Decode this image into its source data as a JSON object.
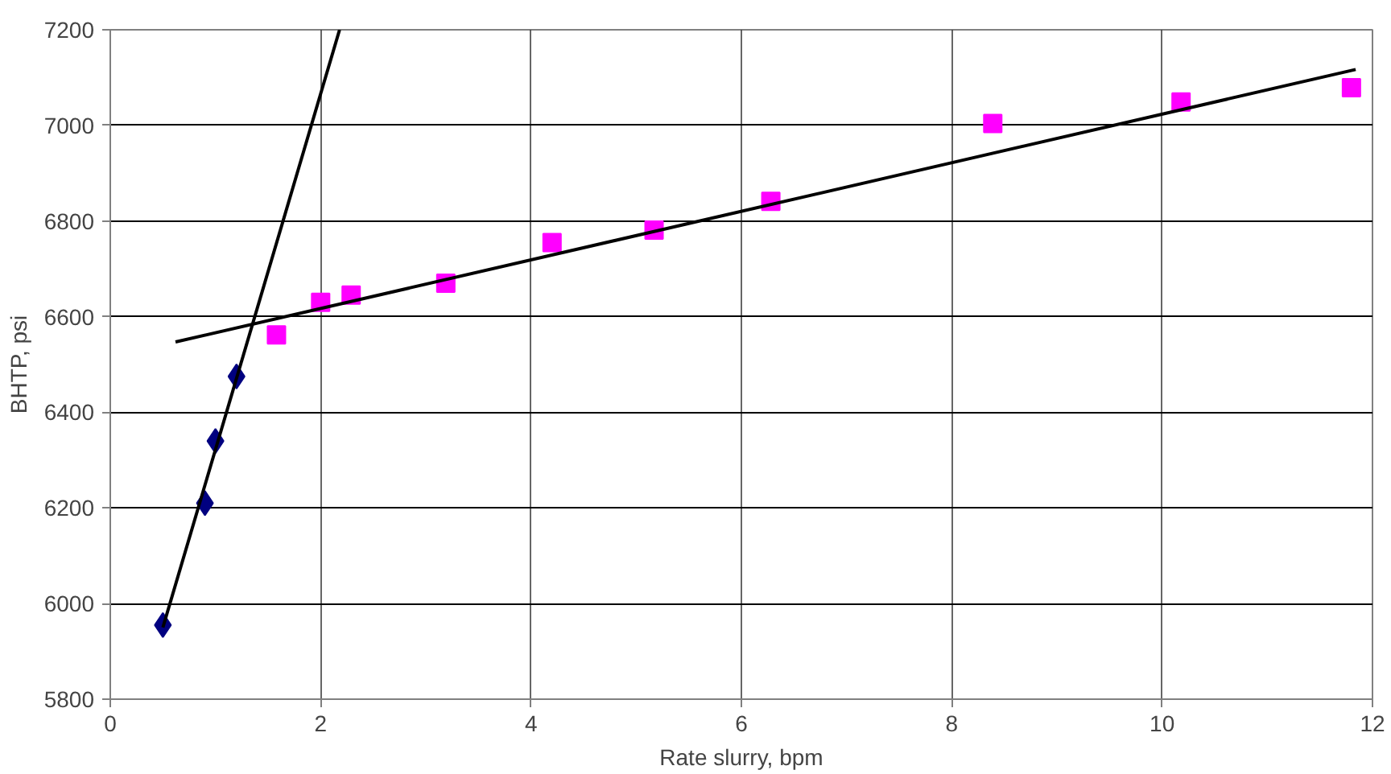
{
  "chart_data": {
    "type": "scatter",
    "xlabel": "Rate slurry, bpm",
    "ylabel": "BHTP, psi",
    "xlim": [
      0,
      12
    ],
    "xticks": [
      0,
      2,
      4,
      6,
      8,
      10,
      12
    ],
    "ylim": [
      5800,
      7200
    ],
    "yticks": [
      5800,
      6000,
      6200,
      6400,
      6600,
      6800,
      7000,
      7200
    ],
    "grid": true,
    "series": [
      {
        "marker": "diamond",
        "color": "#000080",
        "x": [
          0.5,
          0.9,
          1.0,
          1.2
        ],
        "values": [
          5955,
          6210,
          6340,
          6475
        ]
      },
      {
        "marker": "square",
        "color": "#ff00ff",
        "x": [
          1.58,
          2.0,
          2.29,
          3.19,
          4.2,
          5.17,
          6.28,
          8.39,
          10.18,
          11.8
        ],
        "values": [
          6562,
          6630,
          6645,
          6670,
          6755,
          6781,
          6841,
          7004,
          7049,
          7079
        ]
      },
      {
        "type": "line",
        "marker": "none",
        "line_style": "solid",
        "color": "#000000",
        "x": [
          0.5,
          2.18
        ],
        "values": [
          5950,
          7200
        ]
      },
      {
        "type": "line",
        "marker": "none",
        "line_style": "solid",
        "color": "#000000",
        "x": [
          0.62,
          11.84
        ],
        "values": [
          6547,
          7117
        ]
      }
    ]
  }
}
